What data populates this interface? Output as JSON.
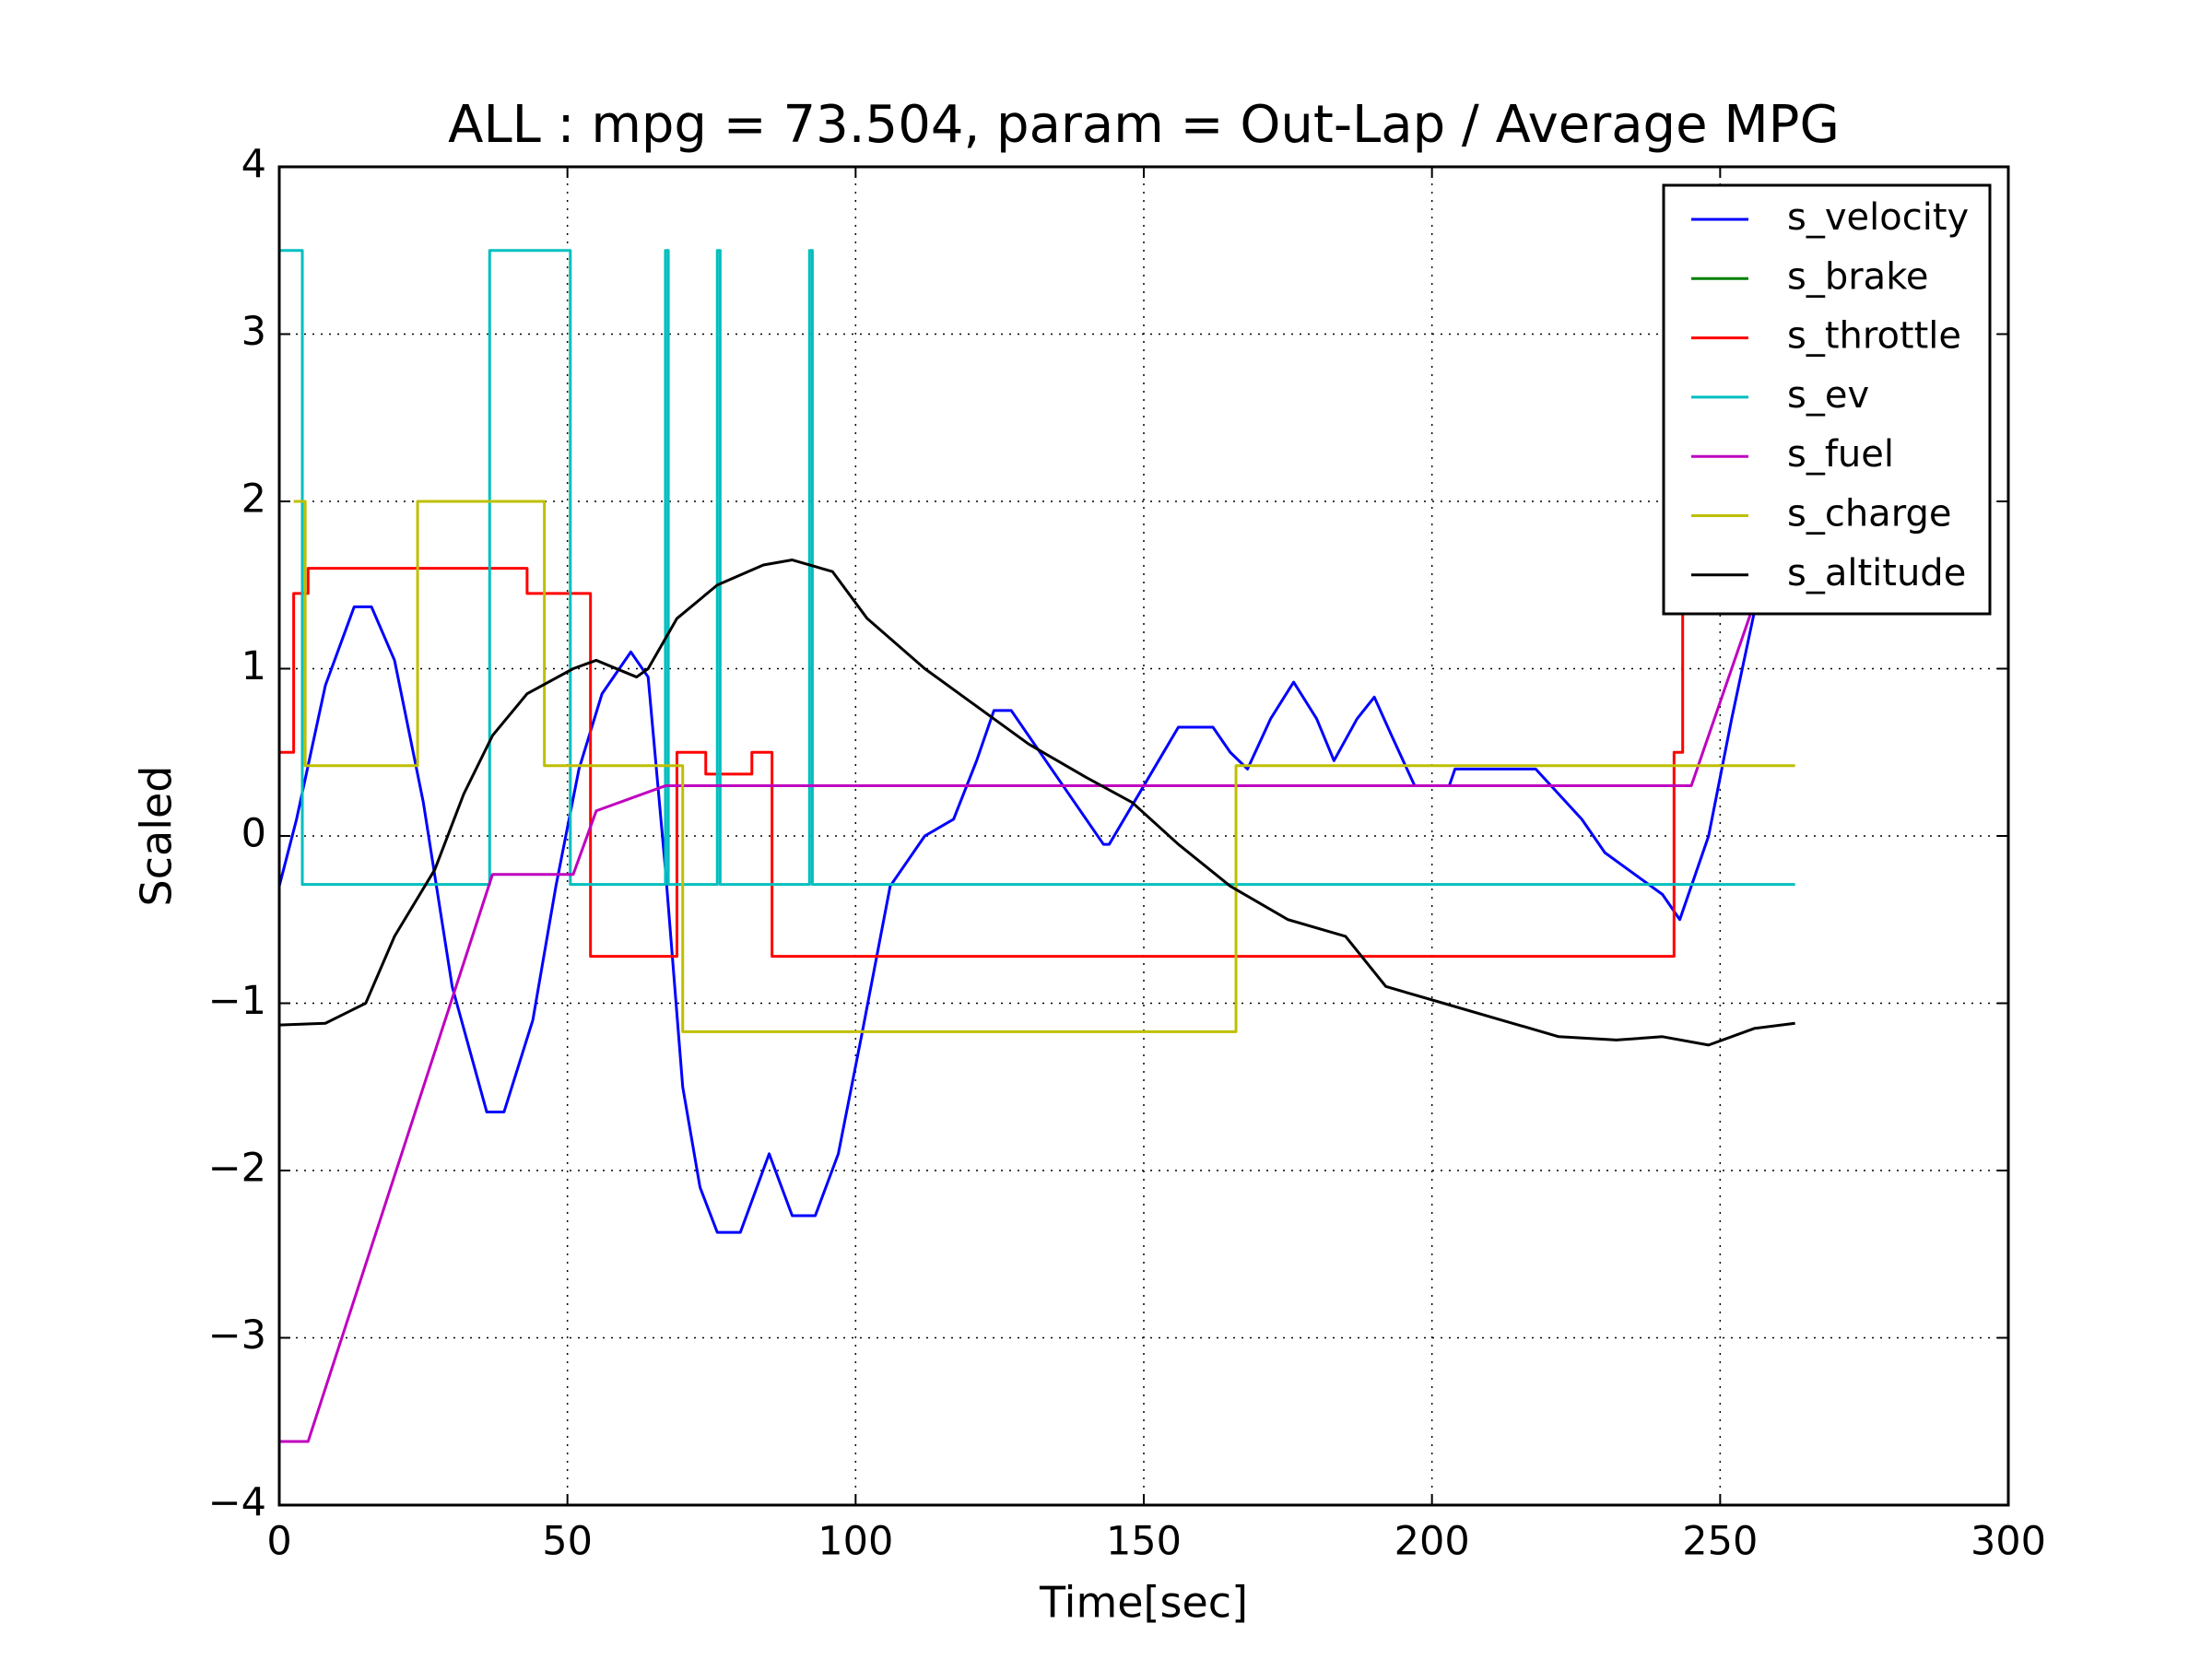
{
  "chart_data": {
    "type": "line",
    "title": "ALL : mpg = 73.504, param = Out-Lap / Average MPG",
    "x_label": "Time[sec]",
    "y_label": "Scaled",
    "xlim": [
      0,
      300
    ],
    "ylim": [
      -4,
      4
    ],
    "xticks": [
      0,
      50,
      100,
      150,
      200,
      250,
      300
    ],
    "yticks": [
      {
        "value": -4,
        "label": "−4"
      },
      {
        "value": -3,
        "label": "−3"
      },
      {
        "value": -2,
        "label": "−2"
      },
      {
        "value": -1,
        "label": "−1"
      },
      0,
      1,
      2,
      3,
      4
    ],
    "grid": true,
    "legend": "upper right",
    "series": [
      {
        "name": "s_velocity",
        "color": "#0000ff",
        "x": [
          0,
          3,
          8,
          13,
          16,
          20,
          25,
          30,
          36,
          39,
          44,
          48,
          52,
          56,
          61,
          64,
          67,
          70,
          73,
          76,
          80,
          85,
          89,
          93,
          97,
          101,
          106,
          112,
          117,
          121,
          124,
          127,
          131,
          136,
          143,
          144,
          150,
          156,
          162,
          165,
          168,
          172,
          176,
          180,
          183,
          187,
          190,
          193,
          197,
          203,
          204,
          218,
          222,
          226,
          230,
          234,
          240,
          243,
          248,
          252,
          256
        ],
        "values": [
          -0.3,
          0.1,
          0.9,
          1.37,
          1.37,
          1.05,
          0.2,
          -0.9,
          -1.65,
          -1.65,
          -1.1,
          -0.3,
          0.4,
          0.85,
          1.1,
          0.95,
          -0.2,
          -1.5,
          -2.1,
          -2.37,
          -2.37,
          -1.9,
          -2.27,
          -2.27,
          -1.9,
          -1.2,
          -0.3,
          0.0,
          0.1,
          0.45,
          0.75,
          0.75,
          0.55,
          0.3,
          -0.05,
          -0.05,
          0.3,
          0.65,
          0.65,
          0.5,
          0.4,
          0.7,
          0.92,
          0.7,
          0.45,
          0.7,
          0.83,
          0.6,
          0.3,
          0.3,
          0.4,
          0.4,
          0.25,
          0.1,
          -0.1,
          -0.2,
          -0.35,
          -0.5,
          0.0,
          0.7,
          1.35
        ]
      },
      {
        "name": "s_brake",
        "color": "#008000",
        "x": [],
        "values": []
      },
      {
        "name": "s_throttle",
        "color": "#ff0000",
        "x": [
          0,
          2.5,
          2.5,
          5,
          5,
          43,
          43,
          54,
          54,
          69,
          69,
          74,
          74,
          82,
          82,
          85.5,
          85.5,
          242,
          242,
          243.5,
          243.5,
          250
        ],
        "values": [
          0.5,
          0.5,
          1.45,
          1.45,
          1.6,
          1.6,
          1.45,
          1.45,
          -0.72,
          -0.72,
          0.5,
          0.5,
          0.37,
          0.37,
          0.5,
          0.5,
          -0.72,
          -0.72,
          0.5,
          0.5,
          1.6,
          1.6
        ]
      },
      {
        "name": "s_ev",
        "color": "#00bfbf",
        "x": [
          0,
          4,
          4,
          36.5,
          36.5,
          50.5,
          50.5,
          67,
          67,
          67.5,
          67.5,
          76,
          76,
          76.5,
          76.5,
          92,
          92,
          92.5,
          92.5,
          263
        ],
        "values": [
          3.5,
          3.5,
          -0.29,
          -0.29,
          3.5,
          3.5,
          -0.29,
          -0.29,
          3.5,
          3.5,
          -0.29,
          -0.29,
          3.5,
          3.5,
          -0.29,
          -0.29,
          3.5,
          3.5,
          -0.29,
          -0.29
        ]
      },
      {
        "name": "s_fuel",
        "color": "#bf00bf",
        "x": [
          0,
          5,
          37,
          51,
          55,
          67,
          245,
          256
        ],
        "values": [
          -3.62,
          -3.62,
          -0.23,
          -0.23,
          0.15,
          0.3,
          0.3,
          1.4
        ]
      },
      {
        "name": "s_charge",
        "color": "#bfbf00",
        "x": [
          2.5,
          4.5,
          4.5,
          24,
          24,
          46,
          46,
          70,
          70,
          166,
          166,
          263
        ],
        "values": [
          2,
          2,
          0.42,
          0.42,
          2,
          2,
          0.42,
          0.42,
          -1.17,
          -1.17,
          0.42,
          0.42
        ]
      },
      {
        "name": "s_altitude",
        "color": "#000000",
        "x": [
          0,
          8,
          15,
          20,
          27,
          32,
          37,
          43,
          51,
          55,
          62,
          64,
          69,
          76,
          84,
          89,
          96,
          102,
          112,
          120,
          130,
          140,
          148,
          156,
          165,
          175,
          185,
          192,
          202,
          212,
          222,
          232,
          240,
          248,
          256,
          263
        ],
        "values": [
          -1.13,
          -1.12,
          -1.0,
          -0.6,
          -0.2,
          0.25,
          0.6,
          0.85,
          1.0,
          1.05,
          0.95,
          1.0,
          1.3,
          1.5,
          1.62,
          1.65,
          1.58,
          1.3,
          1.0,
          0.8,
          0.55,
          0.35,
          0.2,
          -0.05,
          -0.3,
          -0.5,
          -0.6,
          -0.9,
          -1.0,
          -1.1,
          -1.2,
          -1.22,
          -1.2,
          -1.25,
          -1.15,
          -1.12
        ]
      }
    ]
  }
}
